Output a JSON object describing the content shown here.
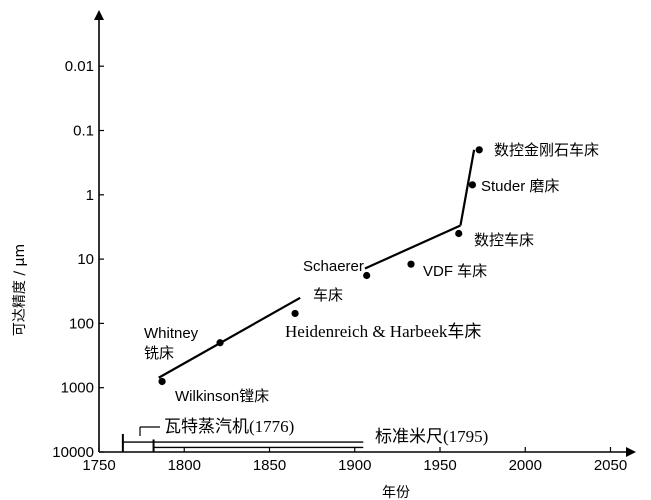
{
  "chart_data": {
    "type": "line",
    "title": "",
    "xlabel": "年份",
    "ylabel": "可达精度 / μm",
    "xlim": [
      1750,
      2080
    ],
    "ylim": [
      10000,
      0.003
    ],
    "y_scale": "log",
    "y_inverted": true,
    "x_ticks": [
      "1750",
      "1800",
      "1850",
      "1900",
      "1950",
      "2000",
      "2050"
    ],
    "y_ticks": [
      "0.01",
      "0.1",
      "1",
      "10",
      "100",
      "1000",
      "10000"
    ],
    "trend_segments": [
      {
        "x": [
          1785,
          1868
        ],
        "y": [
          700,
          40
        ]
      },
      {
        "x": [
          1906,
          1962
        ],
        "y": [
          14,
          3
        ]
      },
      {
        "x": [
          1962,
          1970
        ],
        "y": [
          3,
          0.2
        ]
      }
    ],
    "baseline_segments": [
      {
        "x": [
          1764,
          1905
        ],
        "y": [
          7000,
          7000
        ]
      },
      {
        "x": [
          1782,
          1905
        ],
        "y": [
          8500,
          8500
        ]
      }
    ],
    "points": [
      {
        "name": "Wilkinson镗床",
        "x": 1787,
        "y": 800
      },
      {
        "name": "Whitney 铣床",
        "x": 1821,
        "y": 200
      },
      {
        "name": "Heidenreich & Harbeek车床",
        "x": 1865,
        "y": 70
      },
      {
        "name": "Schaerer 车床",
        "x": 1907,
        "y": 18
      },
      {
        "name": "VDF 车床",
        "x": 1933,
        "y": 12
      },
      {
        "name": "数控车床",
        "x": 1961,
        "y": 4
      },
      {
        "name": "Studer 磨床",
        "x": 1969,
        "y": 0.7
      },
      {
        "name": "数控金刚石车床",
        "x": 1973,
        "y": 0.2
      }
    ],
    "annotations": {
      "wilkinson": "Wilkinson镗床",
      "whitney_1": "Whitney",
      "whitney_2": "铣床",
      "heidenreich": "Heidenreich & Harbeek车床",
      "schaerer_1": "Schaerer",
      "schaerer_2": "车床",
      "vdf": "VDF 车床",
      "nc_lathe": "数控车床",
      "studer": "Studer 磨床",
      "diamond": "数控金刚石车床",
      "watt": "瓦特蒸汽机(1776)",
      "standard_meter": "标准米尺(1795)"
    },
    "grid": false,
    "legend": "none"
  }
}
